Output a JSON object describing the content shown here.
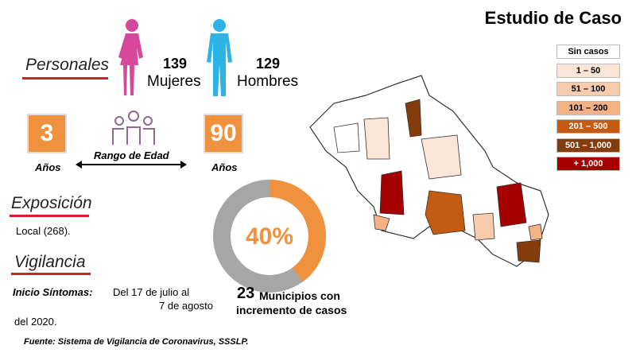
{
  "header": {
    "title": "Estudio de Caso"
  },
  "personales": {
    "heading": "Personales",
    "women": {
      "count": "139",
      "label": "Mujeres"
    },
    "men": {
      "count": "129",
      "label": "Hombres"
    }
  },
  "age": {
    "min": "3",
    "min_unit": "Años",
    "range_label": "Rango de Edad",
    "max": "90",
    "max_unit": "Años"
  },
  "exposicion": {
    "heading": "Exposición",
    "text": "Local (268)."
  },
  "vigilancia": {
    "heading": "Vigilancia",
    "label": "Inicio Síntomas:",
    "line1": "Del 17 de julio al",
    "line2": "7 de agosto",
    "line3": "del 2020."
  },
  "donut": {
    "values": [
      40
    ],
    "value_labels": [
      "40%"
    ],
    "color": "#f0913d",
    "track_color": "#a6a6a6"
  },
  "municipios": {
    "count": "23",
    "line1": "Municipios con",
    "line2": "incremento de casos"
  },
  "legend": [
    {
      "label": "Sin casos",
      "color": "#ffffff",
      "text_color": "#000000"
    },
    {
      "label": "1 – 50",
      "color": "#fbe5d6",
      "text_color": "#000000"
    },
    {
      "label": "51 – 100",
      "color": "#f8cbad",
      "text_color": "#000000"
    },
    {
      "label": "101 – 200",
      "color": "#f4b183",
      "text_color": "#000000"
    },
    {
      "label": "201 – 500",
      "color": "#c55a11",
      "text_color": "#ffffff"
    },
    {
      "label": "501 – 1,000",
      "color": "#843c0c",
      "text_color": "#ffffff"
    },
    {
      "label": "+ 1,000",
      "color": "#a50000",
      "text_color": "#ffffff"
    }
  ],
  "source": "Fuente: Sistema de Vigilancia de Coronavirus, SSSLP."
}
